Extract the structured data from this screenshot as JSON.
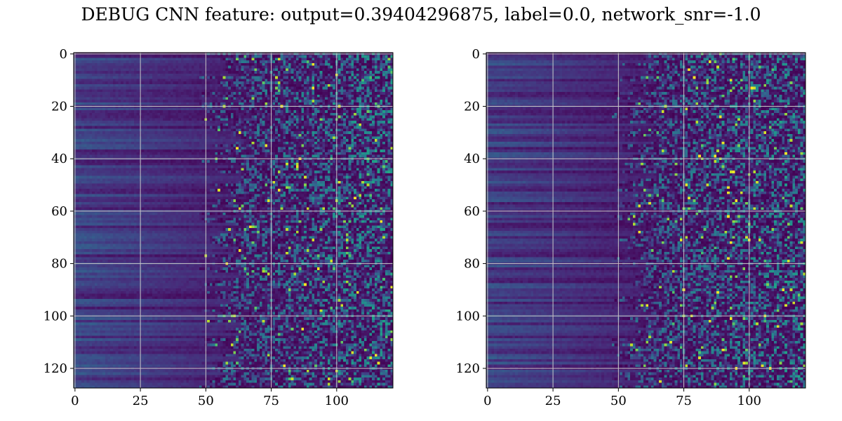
{
  "figure": {
    "title": "DEBUG CNN feature: output=0.39404296875, label=0.0, network_snr=-1.0"
  },
  "colors": {
    "grid": "#c8c8c8",
    "axes": "#000000",
    "colormap": "viridis"
  },
  "chart_data": [
    {
      "type": "heatmap",
      "name": "",
      "rows": 128,
      "cols": 122,
      "xlim": [
        0,
        121
      ],
      "ylim": [
        127,
        0
      ],
      "xticks": [
        0,
        25,
        50,
        75,
        100
      ],
      "xtick_labels": [
        "0",
        "25",
        "50",
        "75",
        "100"
      ],
      "yticks": [
        0,
        20,
        40,
        60,
        80,
        100,
        120
      ],
      "ytick_labels": [
        "0",
        "20",
        "40",
        "60",
        "80",
        "100",
        "120"
      ],
      "grid": true,
      "value_range": [
        0,
        1
      ],
      "pattern": "left columns (0-50) low-valued horizontal stripes; right columns (50-121) noisy, brighter toward high column index",
      "seed": 7
    },
    {
      "type": "heatmap",
      "name": "",
      "rows": 128,
      "cols": 122,
      "xlim": [
        0,
        121
      ],
      "ylim": [
        127,
        0
      ],
      "xticks": [
        0,
        25,
        50,
        75,
        100
      ],
      "xtick_labels": [
        "0",
        "25",
        "50",
        "75",
        "100"
      ],
      "yticks": [
        0,
        20,
        40,
        60,
        80,
        100,
        120
      ],
      "ytick_labels": [
        "0",
        "20",
        "40",
        "60",
        "80",
        "100",
        "120"
      ],
      "grid": true,
      "value_range": [
        0,
        1
      ],
      "pattern": "left columns (0-50) low-valued horizontal stripes; right columns (55-121) noisy, brighter toward high column index",
      "seed": 19
    }
  ]
}
